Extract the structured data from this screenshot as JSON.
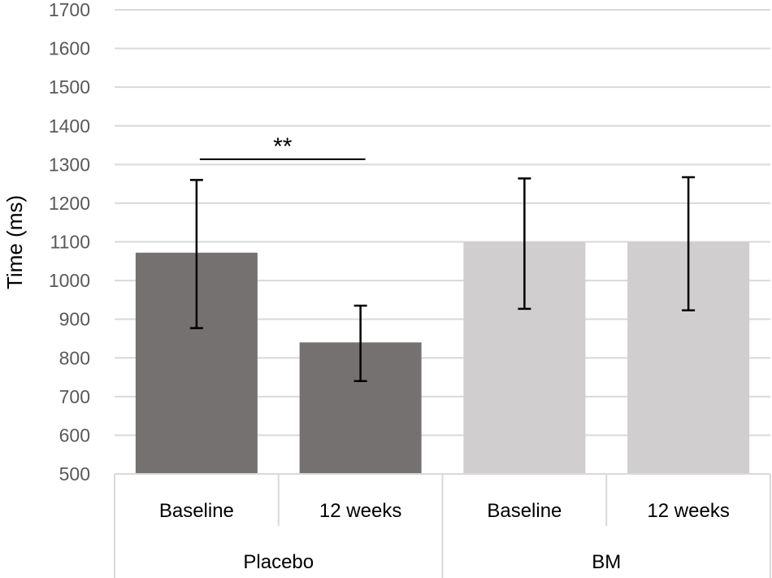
{
  "chart_data": {
    "type": "bar",
    "title": "",
    "ylabel": "Time (ms)",
    "xlabel": "",
    "ylim": [
      500,
      1700
    ],
    "ytick_step": 100,
    "grid": true,
    "groups": [
      {
        "name": "Placebo",
        "categories": [
          "Baseline",
          "12 weeks"
        ]
      },
      {
        "name": "BM",
        "categories": [
          "Baseline",
          "12 weeks"
        ]
      }
    ],
    "bars": [
      {
        "group": "Placebo",
        "category": "Baseline",
        "value": 1072,
        "error_low": 877,
        "error_high": 1260,
        "color": "#767171"
      },
      {
        "group": "Placebo",
        "category": "12 weeks",
        "value": 840,
        "error_low": 740,
        "error_high": 935,
        "color": "#767171"
      },
      {
        "group": "BM",
        "category": "Baseline",
        "value": 1100,
        "error_low": 927,
        "error_high": 1264,
        "color": "#d0cece"
      },
      {
        "group": "BM",
        "category": "12 weeks",
        "value": 1100,
        "error_low": 923,
        "error_high": 1267,
        "color": "#d0cece"
      }
    ],
    "annotations": [
      {
        "text": "**",
        "from_bar": 0,
        "to_bar": 1,
        "y": 1320
      }
    ],
    "colors": {
      "grid": "#d9d9d9",
      "axis_text": "#595959",
      "error_bar": "#000000"
    }
  }
}
